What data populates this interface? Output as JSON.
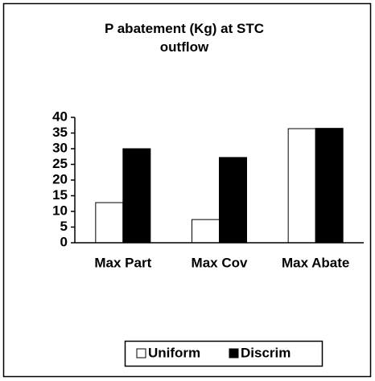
{
  "chart_data": {
    "type": "bar",
    "title": "P abatement (Kg) at STC outflow",
    "categories": [
      "Max Part",
      "Max Cov",
      "Max Abate"
    ],
    "series": [
      {
        "name": "Uniform",
        "color": "#ffffff",
        "values": [
          12.8,
          7.4,
          36.4
        ]
      },
      {
        "name": "Discrim",
        "color": "#000000",
        "values": [
          30,
          27.2,
          36.5
        ]
      }
    ],
    "ylim": [
      0,
      40
    ],
    "yticks": [
      0,
      5,
      10,
      15,
      20,
      25,
      30,
      35,
      40
    ],
    "grid": false,
    "legend": "bottom"
  }
}
